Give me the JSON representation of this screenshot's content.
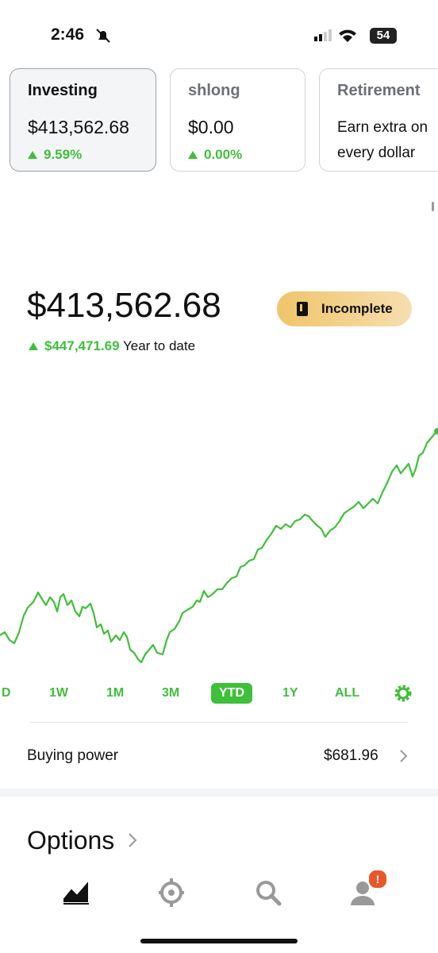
{
  "status_bar": {
    "time": "2:46",
    "battery": "54"
  },
  "accounts": [
    {
      "name": "Investing",
      "value": "$413,562.68",
      "change": "9.59%"
    },
    {
      "name": "shlong",
      "value": "$0.00",
      "change": "0.00%"
    },
    {
      "name": "Retirement",
      "description": "Earn extra on every dollar"
    }
  ],
  "portfolio": {
    "value": "$413,562.68",
    "badge": "Incomplete",
    "gain": "$447,471.69",
    "gain_period": "Year to date"
  },
  "ranges": [
    "D",
    "1W",
    "1M",
    "3M",
    "YTD",
    "1Y",
    "ALL"
  ],
  "selected_range": "YTD",
  "buying_power": {
    "label": "Buying power",
    "value": "$681.96"
  },
  "section": {
    "title": "Options"
  },
  "nav": {
    "badge": "!"
  }
}
